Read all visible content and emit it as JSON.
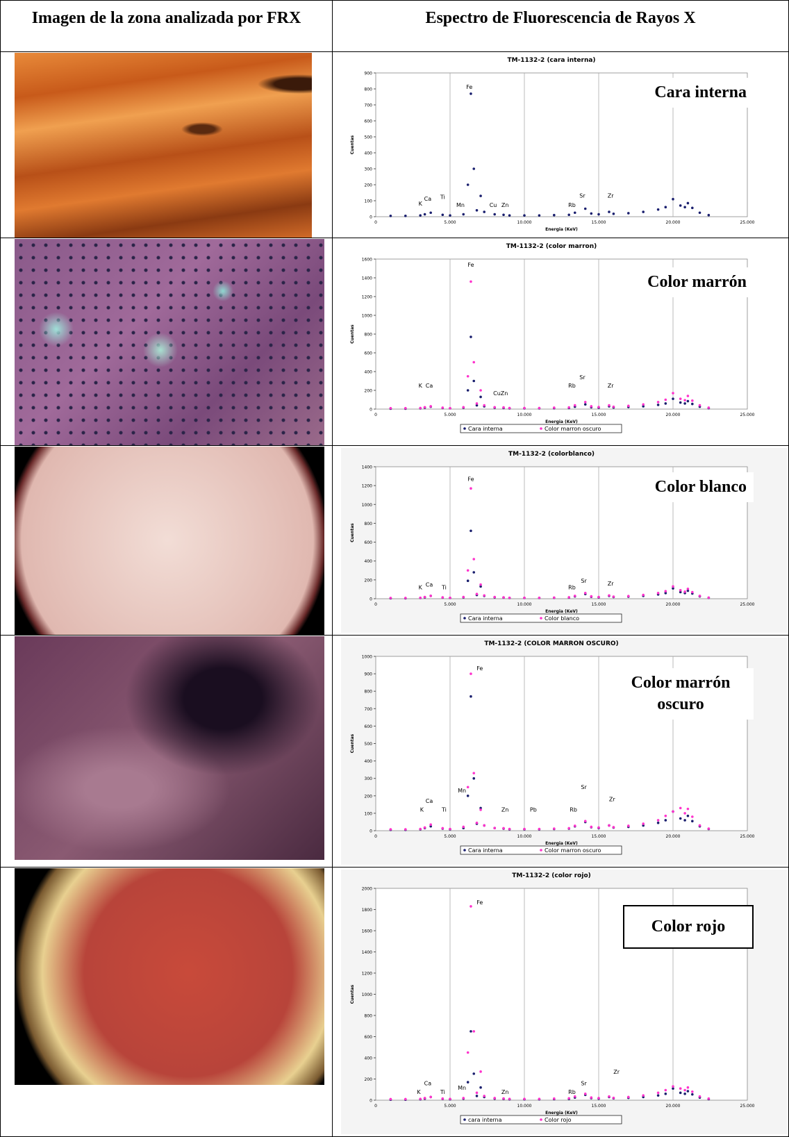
{
  "header": {
    "left": "Imagen de la zona analizada por FRX",
    "right": "Espectro de Fluorescencia de Rayos X"
  },
  "chart_data": [
    {
      "type": "scatter",
      "title": "TM-1132-2 (cara interna)",
      "overlay_label": "Cara interna",
      "overlay_box": false,
      "legend": false,
      "grid": "x",
      "xlabel": "Energia (KeV)",
      "ylabel": "Cuentas",
      "xlim": [
        0,
        25
      ],
      "xticks": [
        0,
        {
          "value": 5,
          "label": "5.000"
        },
        {
          "value": 10,
          "label": "10.000"
        },
        {
          "value": 15,
          "label": "15.000"
        },
        {
          "value": 20,
          "label": "20.000"
        },
        {
          "value": 25,
          "label": "25.000"
        }
      ],
      "ylim": [
        0,
        900
      ],
      "yticks": [
        0,
        100,
        200,
        300,
        400,
        500,
        600,
        700,
        800,
        900
      ],
      "x": [
        1,
        2,
        3,
        3.3,
        3.7,
        4.5,
        5,
        5.9,
        6.2,
        6.4,
        6.6,
        6.8,
        7.06,
        7.3,
        8,
        8.6,
        9,
        10,
        11,
        12,
        13,
        13.4,
        14.1,
        14.5,
        15,
        15.7,
        16,
        17,
        18,
        19,
        19.5,
        20,
        20.5,
        20.8,
        21,
        21.3,
        21.8,
        22.4
      ],
      "series": [
        {
          "color": "#1a1f6e",
          "values": [
            5,
            5,
            8,
            15,
            25,
            12,
            8,
            15,
            200,
            770,
            300,
            40,
            130,
            30,
            15,
            12,
            8,
            8,
            8,
            10,
            12,
            25,
            50,
            20,
            15,
            30,
            18,
            22,
            30,
            45,
            60,
            110,
            70,
            60,
            85,
            55,
            25,
            10
          ]
        }
      ],
      "annotations": [
        {
          "text": "K",
          "x": 3.0,
          "y": 70
        },
        {
          "text": "Ca",
          "x": 3.5,
          "y": 100
        },
        {
          "text": "Ti",
          "x": 4.5,
          "y": 110
        },
        {
          "text": "Mn",
          "x": 5.7,
          "y": 60
        },
        {
          "text": "Fe",
          "x": 6.3,
          "y": 800
        },
        {
          "text": "Cu",
          "x": 7.9,
          "y": 60
        },
        {
          "text": "Zn",
          "x": 8.7,
          "y": 60
        },
        {
          "text": "Rb",
          "x": 13.2,
          "y": 60
        },
        {
          "text": "Sr",
          "x": 13.9,
          "y": 120
        },
        {
          "text": "Zr",
          "x": 15.8,
          "y": 120
        }
      ]
    },
    {
      "type": "scatter",
      "title": "TM-1132-2 (color marron)",
      "overlay_label": "Color marrón",
      "overlay_box": false,
      "legend": true,
      "grid": "x",
      "xlabel": "Energia (KeV)",
      "ylabel": "Cuentas",
      "xlim": [
        0,
        25
      ],
      "xticks": [
        0,
        {
          "value": 5,
          "label": "5.000"
        },
        {
          "value": 10,
          "label": "10.000"
        },
        {
          "value": 15,
          "label": "15.000"
        },
        {
          "value": 20,
          "label": "20.000"
        },
        {
          "value": 25,
          "label": "25.000"
        }
      ],
      "ylim": [
        0,
        1600
      ],
      "yticks": [
        0,
        200,
        400,
        600,
        800,
        1000,
        1200,
        1400,
        1600
      ],
      "x": [
        1,
        2,
        3,
        3.3,
        3.7,
        4.5,
        5,
        5.9,
        6.2,
        6.4,
        6.6,
        6.8,
        7.06,
        7.3,
        8,
        8.6,
        9,
        10,
        11,
        12,
        13,
        13.4,
        14.1,
        14.5,
        15,
        15.7,
        16,
        17,
        18,
        19,
        19.5,
        20,
        20.5,
        20.8,
        21,
        21.3,
        21.8,
        22.4
      ],
      "series": [
        {
          "name": "Cara interna",
          "color": "#1a1f6e",
          "values": [
            5,
            5,
            8,
            15,
            25,
            12,
            8,
            15,
            200,
            770,
            300,
            40,
            130,
            30,
            15,
            12,
            8,
            8,
            8,
            10,
            12,
            25,
            50,
            20,
            15,
            30,
            18,
            22,
            30,
            45,
            60,
            110,
            70,
            60,
            85,
            55,
            25,
            10
          ]
        },
        {
          "name": "Color marron oscuro",
          "color": "#ff33cc",
          "values": [
            10,
            10,
            12,
            20,
            30,
            15,
            10,
            20,
            350,
            1360,
            500,
            60,
            200,
            40,
            20,
            18,
            12,
            12,
            12,
            15,
            18,
            40,
            75,
            30,
            22,
            40,
            25,
            35,
            50,
            75,
            100,
            170,
            110,
            95,
            140,
            90,
            40,
            15
          ]
        }
      ],
      "annotations": [
        {
          "text": "K",
          "x": 3.0,
          "y": 230
        },
        {
          "text": "Ca",
          "x": 3.6,
          "y": 230
        },
        {
          "text": "Fe",
          "x": 6.4,
          "y": 1520
        },
        {
          "text": "CuZn",
          "x": 8.4,
          "y": 150
        },
        {
          "text": "Rb",
          "x": 13.2,
          "y": 230
        },
        {
          "text": "Sr",
          "x": 13.9,
          "y": 320
        },
        {
          "text": "Zr",
          "x": 15.8,
          "y": 230
        }
      ]
    },
    {
      "type": "scatter",
      "title": "TM-1132-2 (colorblanco)",
      "overlay_label": "Color blanco",
      "overlay_box": false,
      "legend": true,
      "grid": "x",
      "xlabel": "Energia (KeV)",
      "ylabel": "Cuentas",
      "xlim": [
        0,
        25
      ],
      "xticks": [
        0,
        {
          "value": 5,
          "label": "5.000"
        },
        {
          "value": 10,
          "label": "10.000"
        },
        {
          "value": 15,
          "label": "15.000"
        },
        {
          "value": 20,
          "label": "20.000"
        },
        {
          "value": 25,
          "label": "25.000"
        }
      ],
      "ylim": [
        0,
        1400
      ],
      "yticks": [
        0,
        200,
        400,
        600,
        800,
        1000,
        1200,
        1400
      ],
      "x": [
        1,
        2,
        3,
        3.3,
        3.7,
        4.5,
        5,
        5.9,
        6.2,
        6.4,
        6.6,
        6.8,
        7.06,
        7.3,
        8,
        8.6,
        9,
        10,
        11,
        12,
        13,
        13.4,
        14.1,
        14.5,
        15,
        15.7,
        16,
        17,
        18,
        19,
        19.5,
        20,
        20.5,
        20.8,
        21,
        21.3,
        21.8,
        22.4
      ],
      "series": [
        {
          "name": "Cara interna",
          "color": "#1a1f6e",
          "values": [
            5,
            5,
            8,
            15,
            30,
            12,
            8,
            15,
            190,
            720,
            280,
            40,
            130,
            30,
            15,
            12,
            8,
            8,
            8,
            10,
            12,
            25,
            50,
            20,
            15,
            30,
            18,
            22,
            30,
            45,
            60,
            110,
            70,
            60,
            85,
            55,
            25,
            10
          ]
        },
        {
          "name": "Color blanco",
          "color": "#ff33cc",
          "values": [
            8,
            8,
            10,
            18,
            30,
            14,
            10,
            18,
            300,
            1170,
            420,
            50,
            150,
            35,
            18,
            14,
            10,
            10,
            10,
            12,
            15,
            30,
            60,
            25,
            18,
            35,
            22,
            28,
            40,
            60,
            80,
            130,
            90,
            75,
            105,
            70,
            30,
            12
          ]
        }
      ],
      "annotations": [
        {
          "text": "K",
          "x": 3.0,
          "y": 100
        },
        {
          "text": "Ca",
          "x": 3.6,
          "y": 130
        },
        {
          "text": "Ti",
          "x": 4.6,
          "y": 100
        },
        {
          "text": "Fe",
          "x": 6.4,
          "y": 1250
        },
        {
          "text": "Rb",
          "x": 13.2,
          "y": 100
        },
        {
          "text": "Sr",
          "x": 14.0,
          "y": 170
        },
        {
          "text": "Zr",
          "x": 15.8,
          "y": 140
        }
      ]
    },
    {
      "type": "scatter",
      "title": "TM-1132-2 (COLOR MARRON OSCURO)",
      "overlay_label": "Color marrón oscuro",
      "overlay_box": false,
      "legend": true,
      "grid": "x",
      "xlabel": "Energia (KeV)",
      "ylabel": "Cuentas",
      "xlim": [
        0,
        25
      ],
      "xticks": [
        0,
        {
          "value": 5,
          "label": "5.000"
        },
        {
          "value": 10,
          "label": "10.000"
        },
        {
          "value": 15,
          "label": "15.000"
        },
        {
          "value": 20,
          "label": "20.000"
        },
        {
          "value": 25,
          "label": "25.000"
        }
      ],
      "ylim": [
        0,
        1000
      ],
      "yticks": [
        0,
        100,
        200,
        300,
        400,
        500,
        600,
        700,
        800,
        900,
        1000
      ],
      "x": [
        1,
        2,
        3,
        3.3,
        3.7,
        4.5,
        5,
        5.9,
        6.2,
        6.4,
        6.6,
        6.8,
        7.06,
        7.3,
        8,
        8.6,
        9,
        10,
        11,
        12,
        13,
        13.4,
        14.1,
        14.5,
        15,
        15.7,
        16,
        17,
        18,
        19,
        19.5,
        20,
        20.5,
        20.8,
        21,
        21.3,
        21.8,
        22.4
      ],
      "series": [
        {
          "name": "Cara interna",
          "color": "#1a1f6e",
          "values": [
            5,
            5,
            8,
            15,
            25,
            12,
            8,
            15,
            200,
            770,
            300,
            40,
            130,
            30,
            15,
            12,
            8,
            8,
            8,
            10,
            12,
            25,
            50,
            20,
            15,
            30,
            18,
            22,
            30,
            45,
            60,
            110,
            70,
            60,
            85,
            55,
            25,
            10
          ]
        },
        {
          "name": "Color marron oscuro",
          "color": "#ff33cc",
          "values": [
            8,
            8,
            10,
            18,
            35,
            14,
            10,
            22,
            250,
            900,
            330,
            45,
            120,
            30,
            15,
            14,
            10,
            10,
            10,
            12,
            14,
            28,
            55,
            22,
            18,
            30,
            20,
            28,
            40,
            60,
            85,
            110,
            130,
            100,
            125,
            80,
            30,
            12
          ]
        }
      ],
      "annotations": [
        {
          "text": "K",
          "x": 3.1,
          "y": 110
        },
        {
          "text": "Ca",
          "x": 3.6,
          "y": 160
        },
        {
          "text": "Ti",
          "x": 4.6,
          "y": 110
        },
        {
          "text": "Mn",
          "x": 5.8,
          "y": 220
        },
        {
          "text": "Fe",
          "x": 7.0,
          "y": 920
        },
        {
          "text": "Zn",
          "x": 8.7,
          "y": 110
        },
        {
          "text": "Pb",
          "x": 10.6,
          "y": 110
        },
        {
          "text": "Rb",
          "x": 13.3,
          "y": 110
        },
        {
          "text": "Sr",
          "x": 14.0,
          "y": 240
        },
        {
          "text": "Zr",
          "x": 15.9,
          "y": 170
        }
      ]
    },
    {
      "type": "scatter",
      "title": "TM-1132-2 (color rojo)",
      "overlay_label": "Color rojo",
      "overlay_box": true,
      "legend": true,
      "grid": "x",
      "xlabel": "Energia (KeV)",
      "ylabel": "Cuentas",
      "xlim": [
        0,
        25
      ],
      "xticks": [
        0,
        {
          "value": 5,
          "label": "5.000"
        },
        {
          "value": 10,
          "label": "10.000"
        },
        {
          "value": 15,
          "label": "15.000"
        },
        {
          "value": 20,
          "label": "20.000"
        },
        {
          "value": 25,
          "label": "25.000"
        }
      ],
      "ylim": [
        0,
        2000
      ],
      "yticks": [
        0,
        200,
        400,
        600,
        800,
        1000,
        1200,
        1400,
        1600,
        1800,
        2000
      ],
      "x": [
        1,
        2,
        3,
        3.3,
        3.7,
        4.5,
        5,
        5.9,
        6.2,
        6.4,
        6.6,
        6.8,
        7.06,
        7.3,
        8,
        8.6,
        9,
        10,
        11,
        12,
        13,
        13.4,
        14.1,
        14.5,
        15,
        15.7,
        16,
        17,
        18,
        19,
        19.5,
        20,
        20.5,
        20.8,
        21,
        21.3,
        21.8,
        22.4
      ],
      "series": [
        {
          "name": "cara interna",
          "color": "#1a1f6e",
          "values": [
            5,
            5,
            8,
            15,
            30,
            12,
            8,
            15,
            170,
            650,
            250,
            40,
            120,
            30,
            15,
            12,
            8,
            8,
            8,
            10,
            12,
            25,
            50,
            20,
            15,
            30,
            18,
            22,
            30,
            45,
            60,
            110,
            70,
            60,
            85,
            55,
            25,
            10
          ]
        },
        {
          "name": "Color rojo",
          "color": "#ff33cc",
          "values": [
            10,
            10,
            12,
            20,
            30,
            15,
            12,
            20,
            450,
            1830,
            650,
            70,
            270,
            40,
            20,
            16,
            12,
            12,
            12,
            15,
            18,
            35,
            60,
            25,
            20,
            35,
            22,
            30,
            45,
            70,
            95,
            130,
            110,
            95,
            120,
            80,
            35,
            15
          ]
        }
      ],
      "annotations": [
        {
          "text": "K",
          "x": 2.9,
          "y": 60
        },
        {
          "text": "Ca",
          "x": 3.5,
          "y": 140
        },
        {
          "text": "Ti",
          "x": 4.5,
          "y": 60
        },
        {
          "text": "Mn",
          "x": 5.8,
          "y": 100
        },
        {
          "text": "Fe",
          "x": 7.0,
          "y": 1850
        },
        {
          "text": "Zn",
          "x": 8.7,
          "y": 60
        },
        {
          "text": "Rb",
          "x": 13.2,
          "y": 60
        },
        {
          "text": "Sr",
          "x": 14.0,
          "y": 140
        },
        {
          "text": "Zr",
          "x": 16.2,
          "y": 250
        }
      ]
    }
  ]
}
